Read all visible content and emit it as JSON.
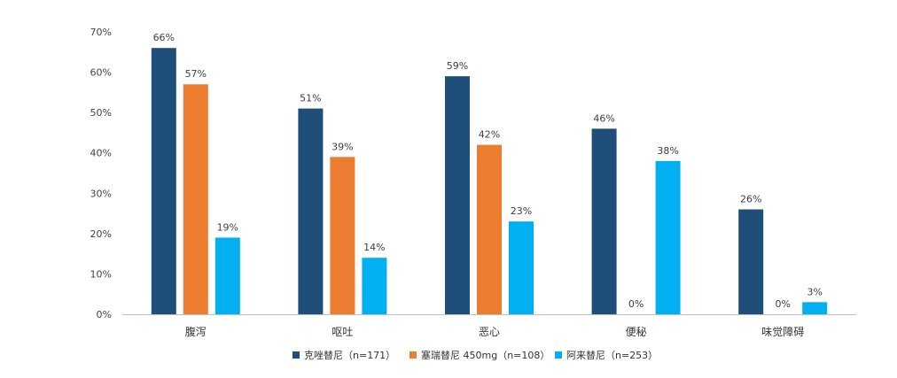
{
  "chart_data": {
    "type": "bar",
    "categories": [
      "腹泻",
      "呕吐",
      "恶心",
      "便秘",
      "味觉障碍"
    ],
    "series": [
      {
        "name": "克唑替尼（n=171）",
        "values": [
          66,
          51,
          59,
          46,
          26
        ],
        "color": "#1f4e79"
      },
      {
        "name": "塞瑞替尼 450mg（n=108）",
        "values": [
          57,
          39,
          42,
          0,
          0
        ],
        "color": "#ed7d31"
      },
      {
        "name": "阿来替尼（n=253）",
        "values": [
          19,
          14,
          23,
          38,
          3
        ],
        "color": "#00b0f0"
      }
    ],
    "data_labels": [
      [
        "66%",
        "51%",
        "59%",
        "46%",
        "26%"
      ],
      [
        "57%",
        "39%",
        "42%",
        "0%",
        "0%"
      ],
      [
        "19%",
        "14%",
        "23%",
        "38%",
        "3%"
      ]
    ],
    "y_ticks": [
      0,
      10,
      20,
      30,
      40,
      50,
      60,
      70
    ],
    "y_tick_labels": [
      "0%",
      "10%",
      "20%",
      "30%",
      "40%",
      "50%",
      "60%",
      "70%"
    ],
    "ylim": [
      0,
      70
    ],
    "grid": false,
    "legend_position": "bottom",
    "axis_color": "#bfbfbf"
  }
}
